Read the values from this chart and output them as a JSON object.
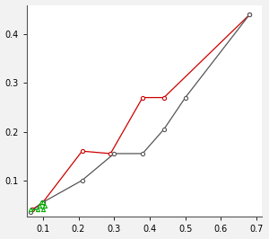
{
  "red_series": {
    "x": [
      0.07,
      0.1,
      0.21,
      0.29,
      0.38,
      0.44,
      0.68
    ],
    "y": [
      0.04,
      0.055,
      0.16,
      0.155,
      0.27,
      0.27,
      0.44
    ],
    "color": "#cc0000",
    "marker": "o",
    "markersize": 3,
    "linewidth": 0.9
  },
  "dark_series": {
    "x": [
      0.065,
      0.1,
      0.21,
      0.3,
      0.38,
      0.44,
      0.5,
      0.68
    ],
    "y": [
      0.035,
      0.055,
      0.1,
      0.155,
      0.155,
      0.205,
      0.27,
      0.44
    ],
    "color": "#555555",
    "marker": "o",
    "markersize": 3,
    "linewidth": 0.9
  },
  "green_series": {
    "x": [
      0.065,
      0.085,
      0.095,
      0.105,
      0.1,
      0.09,
      0.1
    ],
    "y": [
      0.04,
      0.04,
      0.055,
      0.048,
      0.04,
      0.048,
      0.055
    ],
    "color": "#00aa00",
    "marker": "^",
    "markersize": 3,
    "linewidth": 0.9
  },
  "xlim": [
    0.055,
    0.715
  ],
  "ylim": [
    0.025,
    0.46
  ],
  "xticks": [
    0.1,
    0.2,
    0.3,
    0.4,
    0.5,
    0.6,
    0.7
  ],
  "yticks": [
    0.1,
    0.2,
    0.3,
    0.4
  ],
  "tick_labelsize": 7,
  "bg_color": "#f2f2f2",
  "plot_bg_color": "white"
}
